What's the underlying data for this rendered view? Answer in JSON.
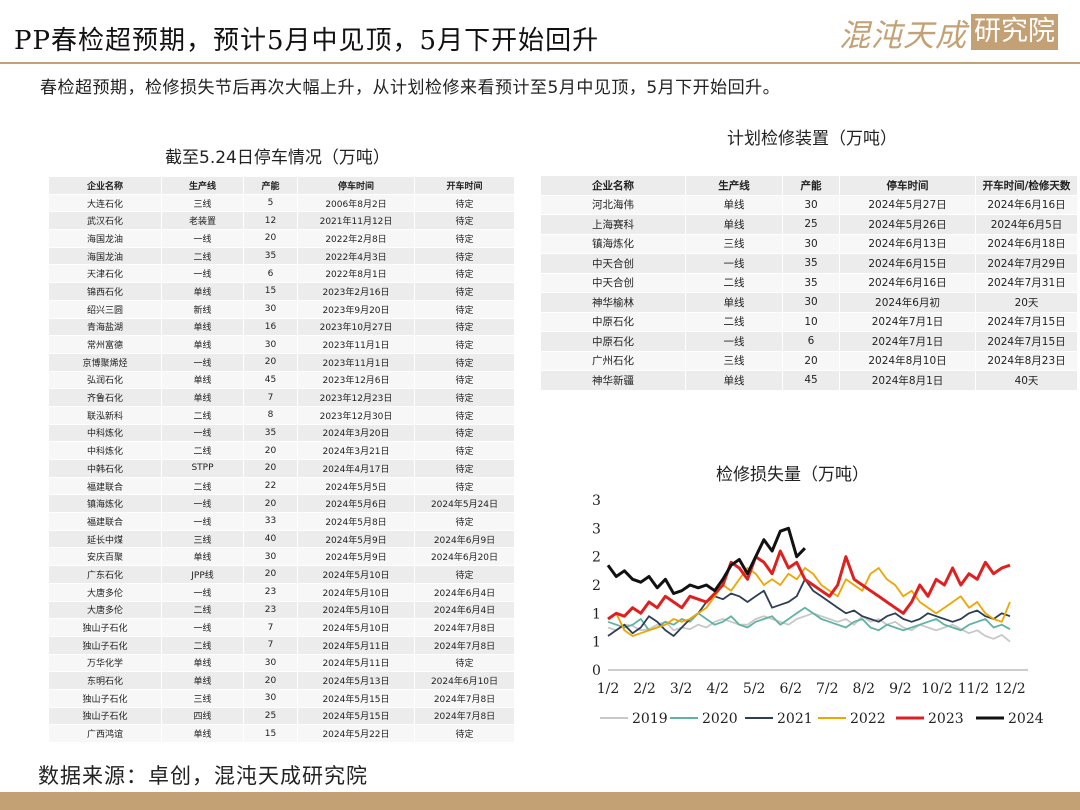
{
  "header": {
    "title": "PP春检超预期，预计5月中见顶，5月下开始回升",
    "logo_text": "混沌天成",
    "logo_box_text": "研究院"
  },
  "subtitle": "春检超预期，检修损失节后再次大幅上升，从计划检修来看预计至5月中见顶，5月下开始回升。",
  "stop_table": {
    "title": "截至5.24日停车情况（万吨）",
    "headers": [
      "企业名称",
      "生产线",
      "产能",
      "停车时间",
      "开车时间"
    ],
    "rows": [
      [
        "大连石化",
        "三线",
        "5",
        "2006年8月2日",
        "待定"
      ],
      [
        "武汉石化",
        "老装置",
        "12",
        "2021年11月12日",
        "待定"
      ],
      [
        "海国龙油",
        "一线",
        "20",
        "2022年2月8日",
        "待定"
      ],
      [
        "海国龙油",
        "二线",
        "35",
        "2022年4月3日",
        "待定"
      ],
      [
        "天津石化",
        "一线",
        "6",
        "2022年8月1日",
        "待定"
      ],
      [
        "锦西石化",
        "单线",
        "15",
        "2023年2月16日",
        "待定"
      ],
      [
        "绍兴三圆",
        "新线",
        "30",
        "2023年9月20日",
        "待定"
      ],
      [
        "青海盐湖",
        "单线",
        "16",
        "2023年10月27日",
        "待定"
      ],
      [
        "常州富德",
        "单线",
        "30",
        "2023年11月1日",
        "待定"
      ],
      [
        "京博聚烯烃",
        "一线",
        "20",
        "2023年11月1日",
        "待定"
      ],
      [
        "弘润石化",
        "单线",
        "45",
        "2023年12月6日",
        "待定"
      ],
      [
        "齐鲁石化",
        "单线",
        "7",
        "2023年12月23日",
        "待定"
      ],
      [
        "联泓新科",
        "二线",
        "8",
        "2023年12月30日",
        "待定"
      ],
      [
        "中科炼化",
        "一线",
        "35",
        "2024年3月20日",
        "待定"
      ],
      [
        "中科炼化",
        "二线",
        "20",
        "2024年3月21日",
        "待定"
      ],
      [
        "中韩石化",
        "STPP",
        "20",
        "2024年4月17日",
        "待定"
      ],
      [
        "福建联合",
        "二线",
        "22",
        "2024年5月5日",
        "待定"
      ],
      [
        "镇海炼化",
        "一线",
        "20",
        "2024年5月6日",
        "2024年5月24日"
      ],
      [
        "福建联合",
        "一线",
        "33",
        "2024年5月8日",
        "待定"
      ],
      [
        "延长中煤",
        "三线",
        "40",
        "2024年5月9日",
        "2024年6月9日"
      ],
      [
        "安庆百聚",
        "单线",
        "30",
        "2024年5月9日",
        "2024年6月20日"
      ],
      [
        "广东石化",
        "JPP线",
        "20",
        "2024年5月10日",
        "待定"
      ],
      [
        "大唐多伦",
        "一线",
        "23",
        "2024年5月10日",
        "2024年6月4日"
      ],
      [
        "大唐多伦",
        "二线",
        "23",
        "2024年5月10日",
        "2024年6月4日"
      ],
      [
        "独山子石化",
        "一线",
        "7",
        "2024年5月10日",
        "2024年7月8日"
      ],
      [
        "独山子石化",
        "二线",
        "7",
        "2024年5月11日",
        "2024年7月8日"
      ],
      [
        "万华化学",
        "单线",
        "30",
        "2024年5月11日",
        "待定"
      ],
      [
        "东明石化",
        "单线",
        "20",
        "2024年5月13日",
        "2024年6月10日"
      ],
      [
        "独山子石化",
        "三线",
        "30",
        "2024年5月15日",
        "2024年7月8日"
      ],
      [
        "独山子石化",
        "四线",
        "25",
        "2024年5月15日",
        "2024年7月8日"
      ],
      [
        "广西鸿谊",
        "单线",
        "15",
        "2024年5月22日",
        "待定"
      ]
    ]
  },
  "plan_table": {
    "title": "计划检修装置（万吨）",
    "headers": [
      "企业名称",
      "生产线",
      "产能",
      "停车时间",
      "开车时间/检修天数"
    ],
    "rows": [
      [
        "河北海伟",
        "单线",
        "30",
        "2024年5月27日",
        "2024年6月16日"
      ],
      [
        "上海赛科",
        "单线",
        "25",
        "2024年5月26日",
        "2024年6月5日"
      ],
      [
        "镇海炼化",
        "三线",
        "30",
        "2024年6月13日",
        "2024年6月18日"
      ],
      [
        "中天合创",
        "一线",
        "35",
        "2024年6月15日",
        "2024年7月29日"
      ],
      [
        "中天合创",
        "二线",
        "35",
        "2024年6月16日",
        "2024年7月31日"
      ],
      [
        "神华榆林",
        "单线",
        "30",
        "2024年6月初",
        "20天"
      ],
      [
        "中原石化",
        "二线",
        "10",
        "2024年7月1日",
        "2024年7月15日"
      ],
      [
        "中原石化",
        "一线",
        "6",
        "2024年7月1日",
        "2024年7月15日"
      ],
      [
        "广州石化",
        "三线",
        "20",
        "2024年8月10日",
        "2024年8月23日"
      ],
      [
        "神华新疆",
        "单线",
        "45",
        "2024年8月1日",
        "40天"
      ]
    ]
  },
  "chart_data": {
    "type": "line",
    "title": "检修损失量（万吨）",
    "x_ticks": [
      "1/2",
      "2/2",
      "3/2",
      "4/2",
      "5/2",
      "6/2",
      "7/2",
      "8/2",
      "9/2",
      "10/2",
      "11/2",
      "12/2"
    ],
    "y_ticks": [
      "0",
      "1",
      "1",
      "2",
      "2",
      "3",
      "3"
    ],
    "ylim": [
      0,
      3
    ],
    "legend_position": "bottom",
    "series": [
      {
        "name": "2019",
        "color": "#c8c8c8",
        "values": [
          0.75,
          0.7,
          0.8,
          0.78,
          0.7,
          0.72,
          0.8,
          0.85,
          0.7,
          0.75,
          0.72,
          0.8,
          0.75,
          0.85,
          0.9,
          0.85,
          0.8,
          0.8,
          0.9,
          0.95,
          0.9,
          0.85,
          0.8,
          0.9,
          0.95,
          1.0,
          0.95,
          0.9,
          0.85,
          0.9,
          0.8,
          0.95,
          0.85,
          0.9,
          0.8,
          0.85,
          0.75,
          0.7,
          0.8,
          0.75,
          0.7,
          0.75,
          0.8,
          0.72,
          0.65,
          0.7,
          0.6,
          0.55,
          0.62,
          0.5
        ]
      },
      {
        "name": "2020",
        "color": "#5fb3a0",
        "values": [
          0.85,
          0.8,
          0.75,
          0.8,
          0.9,
          0.7,
          0.75,
          0.85,
          0.8,
          0.9,
          0.85,
          1.0,
          0.9,
          0.8,
          0.85,
          0.95,
          0.8,
          0.75,
          0.85,
          0.9,
          0.95,
          0.8,
          0.9,
          1.0,
          1.1,
          1.0,
          0.9,
          0.85,
          0.8,
          0.75,
          0.85,
          0.9,
          0.75,
          0.7,
          0.8,
          0.75,
          0.7,
          0.75,
          0.8,
          0.85,
          0.9,
          0.8,
          0.75,
          0.7,
          0.8,
          0.85,
          0.9,
          0.75,
          0.8,
          0.72
        ]
      },
      {
        "name": "2021",
        "color": "#2f3e55",
        "values": [
          0.6,
          0.7,
          0.8,
          0.65,
          0.75,
          0.95,
          0.85,
          0.7,
          0.6,
          0.75,
          0.9,
          1.0,
          1.2,
          1.3,
          1.25,
          1.35,
          1.3,
          1.2,
          1.3,
          1.4,
          1.1,
          1.15,
          1.2,
          1.3,
          1.6,
          1.4,
          1.3,
          1.2,
          1.1,
          1.0,
          1.05,
          0.95,
          0.9,
          0.85,
          0.95,
          1.0,
          0.9,
          0.85,
          0.9,
          1.0,
          0.95,
          0.9,
          0.85,
          0.9,
          1.0,
          1.05,
          0.95,
          0.9,
          1.0,
          0.95
        ]
      },
      {
        "name": "2022",
        "color": "#f0a500",
        "values": [
          0.9,
          1.0,
          0.7,
          0.6,
          0.65,
          0.7,
          0.75,
          0.8,
          0.9,
          0.85,
          0.9,
          1.0,
          1.1,
          1.3,
          1.5,
          1.4,
          1.6,
          1.8,
          1.7,
          1.5,
          1.6,
          1.5,
          1.7,
          1.6,
          1.8,
          1.7,
          1.5,
          1.4,
          1.3,
          1.6,
          1.5,
          1.4,
          1.7,
          1.8,
          1.6,
          1.5,
          1.3,
          1.4,
          1.2,
          1.1,
          1.0,
          1.1,
          1.2,
          1.3,
          1.1,
          1.2,
          1.0,
          0.9,
          0.85,
          1.2
        ]
      },
      {
        "name": "2023",
        "color": "#e02020",
        "values": [
          0.9,
          1.0,
          0.95,
          1.1,
          1.0,
          1.2,
          1.1,
          1.3,
          1.2,
          1.1,
          1.3,
          1.25,
          1.2,
          1.35,
          1.5,
          1.9,
          1.8,
          1.6,
          2.0,
          1.9,
          1.7,
          2.1,
          1.8,
          1.9,
          1.6,
          1.5,
          1.4,
          1.3,
          1.5,
          2.0,
          1.6,
          1.5,
          1.4,
          1.3,
          1.2,
          1.1,
          1.0,
          1.2,
          1.5,
          1.3,
          1.6,
          1.5,
          1.8,
          1.5,
          1.7,
          1.6,
          1.9,
          1.7,
          1.8,
          1.85
        ]
      },
      {
        "name": "2024",
        "color": "#111111",
        "values": [
          1.85,
          1.65,
          1.75,
          1.6,
          1.55,
          1.65,
          1.45,
          1.6,
          1.35,
          1.4,
          1.5,
          1.45,
          1.5,
          1.4,
          1.6,
          1.85,
          1.95,
          1.7,
          2.0,
          2.3,
          2.1,
          2.45,
          2.5,
          2.0,
          2.15
        ]
      }
    ]
  }
}
